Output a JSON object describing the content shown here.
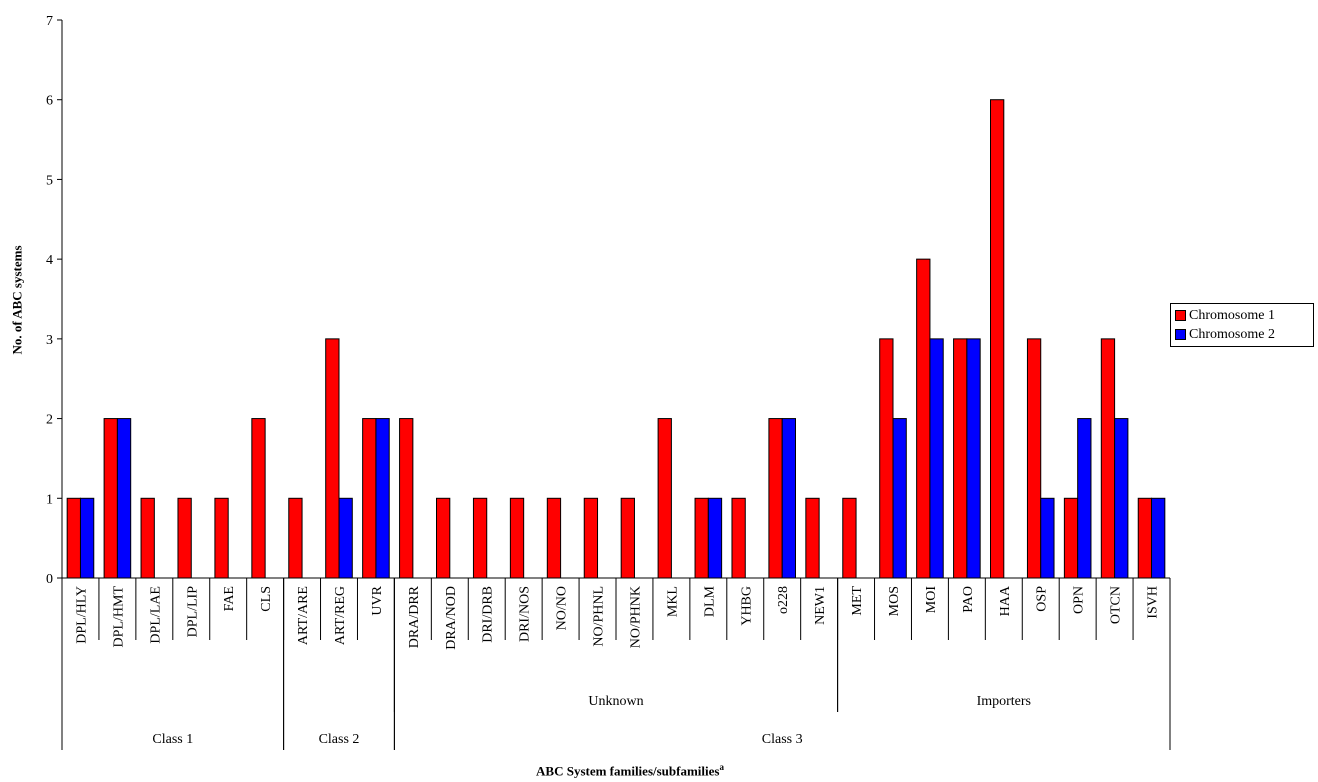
{
  "chart_data": {
    "type": "bar",
    "xlabel": "ABC System families/subfamilies",
    "xlabel_superscript": "a",
    "ylabel": "No. of ABC systems",
    "ylim": [
      0,
      7
    ],
    "yticks": [
      "0",
      "1",
      "2",
      "3",
      "4",
      "5",
      "6",
      "7"
    ],
    "grid": false,
    "legend_position": "right",
    "categories": [
      "DPL/HLY",
      "DPL/HMT",
      "DPL/LAE",
      "DPL/LIP",
      "FAE",
      "CLS",
      "ART/ARE",
      "ART/REG",
      "UVR",
      "DRA/DRR",
      "DRA/NOD",
      "DRI/DRB",
      "DRI/NOS",
      "NO/NO",
      "NO/PHNL",
      "NO/PHNK",
      "MKL",
      "DLM",
      "YHBG",
      "o228",
      "NEW1",
      "MET",
      "MOS",
      "MOI",
      "PAO",
      "HAA",
      "OSP",
      "OPN",
      "OTCN",
      "ISVH"
    ],
    "series": [
      {
        "name": "Chromosome 1",
        "color": "#ff0000",
        "values": [
          1,
          2,
          1,
          1,
          1,
          2,
          1,
          3,
          2,
          2,
          1,
          1,
          1,
          1,
          1,
          1,
          2,
          1,
          1,
          2,
          1,
          1,
          3,
          4,
          3,
          6,
          3,
          1,
          3,
          1
        ]
      },
      {
        "name": "Chromosome 2",
        "color": "#0000ff",
        "values": [
          1,
          2,
          0,
          0,
          0,
          0,
          0,
          1,
          2,
          0,
          0,
          0,
          0,
          0,
          0,
          0,
          0,
          1,
          0,
          2,
          0,
          0,
          2,
          3,
          3,
          0,
          1,
          2,
          2,
          1
        ]
      }
    ],
    "subgroups": [
      {
        "label": "Unknown",
        "start": 9,
        "end": 20
      },
      {
        "label": "Importers",
        "start": 21,
        "end": 29
      }
    ],
    "groups": [
      {
        "label": "Class 1",
        "start": 0,
        "end": 5
      },
      {
        "label": "Class 2",
        "start": 6,
        "end": 8
      },
      {
        "label": "Class 3",
        "start": 9,
        "end": 29
      }
    ]
  }
}
